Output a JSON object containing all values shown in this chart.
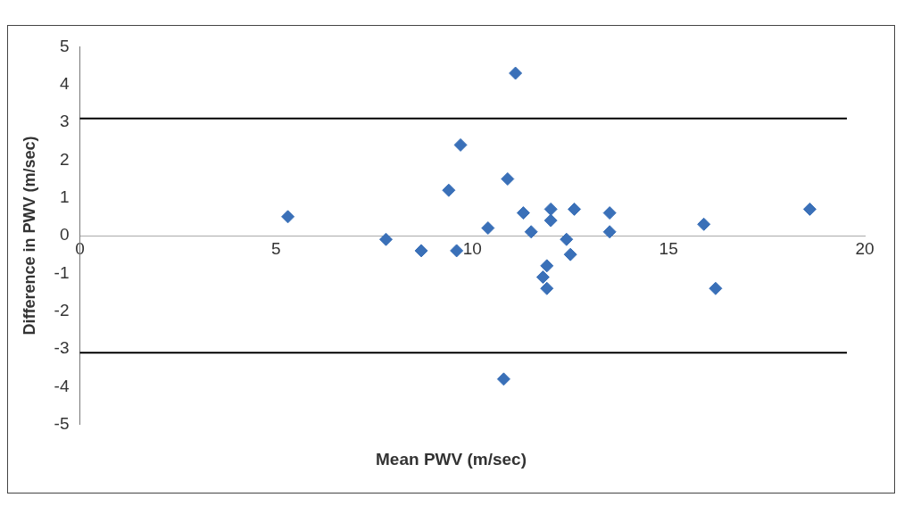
{
  "chart_data": {
    "type": "scatter",
    "xlabel": "Mean PWV (m/sec)",
    "ylabel": "Difference in PWV (m/sec)",
    "x": [
      5.3,
      7.8,
      8.7,
      9.4,
      9.7,
      9.6,
      10.4,
      10.9,
      11.1,
      10.8,
      11.3,
      11.5,
      12.0,
      12.0,
      11.9,
      11.8,
      11.9,
      12.4,
      12.5,
      12.6,
      13.5,
      13.5,
      15.9,
      16.2,
      18.6
    ],
    "series": [
      {
        "color": "#3a70b8",
        "values": [
          0.5,
          -0.1,
          -0.4,
          1.2,
          2.4,
          -0.4,
          0.2,
          1.5,
          4.3,
          -3.8,
          0.6,
          0.1,
          0.7,
          0.4,
          -0.8,
          -1.1,
          -1.4,
          -0.1,
          -0.5,
          0.7,
          0.6,
          0.1,
          0.3,
          -1.4,
          0.7
        ]
      }
    ],
    "xlim": [
      0,
      20
    ],
    "xticks": [
      0,
      5,
      10,
      15,
      20
    ],
    "ylim": [
      -5,
      5
    ],
    "yticks": [
      -5,
      -4,
      -3,
      -2,
      -1,
      0,
      1,
      2,
      3,
      4,
      5
    ],
    "ref_lines": [
      {
        "axis": "y",
        "value": 3.1,
        "color": "#000000"
      },
      {
        "axis": "y",
        "value": -3.1,
        "color": "#000000"
      }
    ],
    "grid": false,
    "legend": false,
    "marker": "diamond"
  }
}
